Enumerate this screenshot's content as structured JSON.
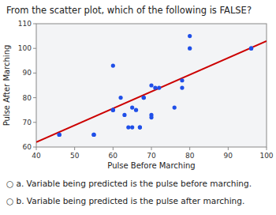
{
  "chart_data": {
    "type": "scatter",
    "title": "From the scatter plot, which of the following is FALSE?",
    "xlabel": "Pulse Before Marching",
    "ylabel": "Pulse After Marching",
    "xlim": [
      40,
      100
    ],
    "ylim": [
      60,
      110
    ],
    "xticks": [
      40,
      50,
      60,
      70,
      80,
      90,
      100
    ],
    "yticks": [
      60,
      70,
      80,
      90,
      100,
      110
    ],
    "grid": false,
    "series": [
      {
        "type": "scatter",
        "color": "#1f4fe8",
        "marker": "circle",
        "x": [
          46,
          46,
          55,
          55,
          60,
          60,
          60,
          62,
          63,
          64,
          65,
          65,
          66,
          67,
          67,
          68,
          68,
          70,
          70,
          70,
          71,
          72,
          76,
          78,
          78,
          80,
          80,
          96,
          96
        ],
        "values": [
          65,
          65,
          65,
          65,
          75,
          75,
          93,
          80,
          73,
          68,
          68,
          76,
          75,
          68,
          68,
          80,
          80,
          73,
          72,
          85,
          84,
          84,
          76,
          87,
          84,
          105,
          100,
          100,
          100
        ]
      },
      {
        "type": "line",
        "color": "#cc0000",
        "line_style": "solid",
        "x": [
          40,
          100
        ],
        "values": [
          62,
          103
        ]
      }
    ],
    "annotations": [
      "○ a. Variable being predicted is the pulse before marching.",
      "○ b. Variable being predicted is the pulse after marching."
    ]
  }
}
